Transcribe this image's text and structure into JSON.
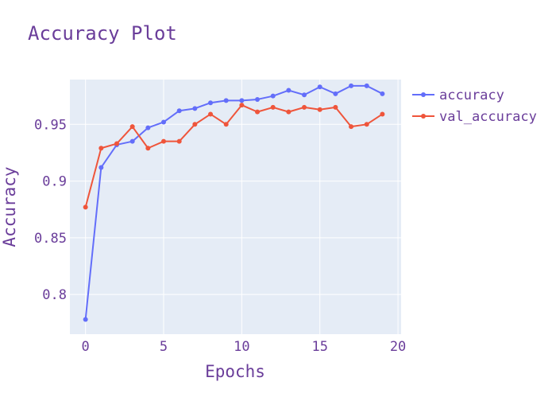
{
  "colors": {
    "plot_bg": "#E5ECF6",
    "grid": "#FFFFFF",
    "text": "#6A3D9A",
    "series_1": "#636EFA",
    "series_2": "#EF553B"
  },
  "chart_data": {
    "type": "line",
    "title": "Accuracy Plot",
    "xlabel": "Epochs",
    "ylabel": "Accuracy",
    "xlim": [
      -1,
      20.2
    ],
    "ylim": [
      0.765,
      0.9895
    ],
    "xticks": [
      0,
      5,
      10,
      15,
      20
    ],
    "yticks": [
      0.8,
      0.85,
      0.9,
      0.95
    ],
    "ytick_labels": [
      "0.8",
      "0.85",
      "0.9",
      "0.95"
    ],
    "grid": true,
    "legend_position": "top-right-outside",
    "x": [
      0,
      1,
      2,
      3,
      4,
      5,
      6,
      7,
      8,
      9,
      10,
      11,
      12,
      13,
      14,
      15,
      16,
      17,
      18,
      19
    ],
    "series": [
      {
        "name": "accuracy",
        "color_key": "series_1",
        "values": [
          0.778,
          0.912,
          0.932,
          0.935,
          0.947,
          0.952,
          0.962,
          0.964,
          0.969,
          0.971,
          0.971,
          0.972,
          0.975,
          0.98,
          0.976,
          0.983,
          0.977,
          0.984,
          0.984,
          0.977
        ]
      },
      {
        "name": "val_accuracy",
        "color_key": "series_2",
        "values": [
          0.877,
          0.929,
          0.933,
          0.948,
          0.929,
          0.935,
          0.935,
          0.95,
          0.959,
          0.95,
          0.967,
          0.961,
          0.965,
          0.961,
          0.965,
          0.963,
          0.965,
          0.948,
          0.95,
          0.959
        ]
      }
    ]
  }
}
